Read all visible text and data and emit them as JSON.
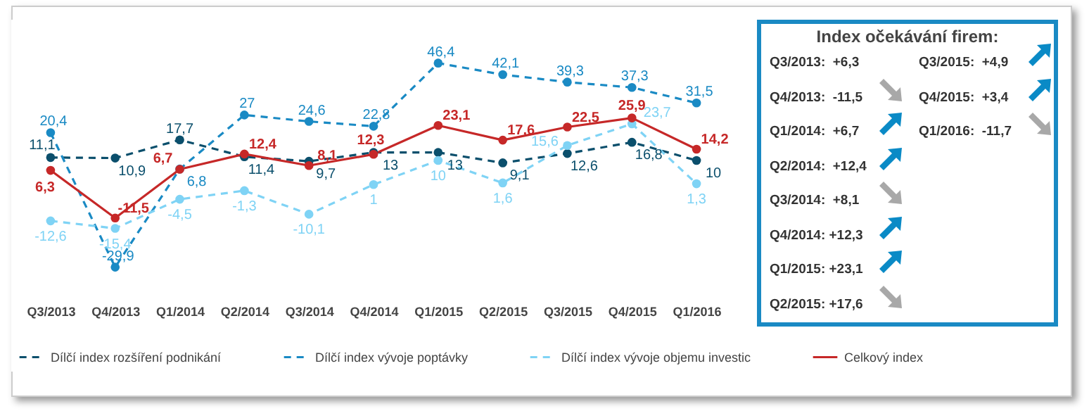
{
  "chart_data": [
    {
      "type": "line",
      "categories": [
        "Q3/2013",
        "Q4/2013",
        "Q1/2014",
        "Q2/2014",
        "Q3/2014",
        "Q4/2014",
        "Q1/2015",
        "Q2/2015",
        "Q3/2015",
        "Q4/2015",
        "Q1/2016"
      ],
      "series": [
        {
          "name": "Dílčí index rozšíření podnikání",
          "color": "#0b4f6c",
          "line_style": "dashed",
          "values": [
            11.1,
            10.9,
            17.7,
            11.4,
            9.7,
            13,
            13,
            9.1,
            12.6,
            16.8,
            10
          ],
          "value_labels": [
            "11,1",
            "10,9",
            "17,7",
            "11,4",
            "9,7",
            "13",
            "13",
            "9,1",
            "12,6",
            "16,8",
            "10"
          ]
        },
        {
          "name": "Dílčí index vývoje poptávky",
          "color": "#1a8ac4",
          "line_style": "dashed",
          "values": [
            20.4,
            -29.9,
            6.8,
            27,
            24.6,
            22.8,
            46.4,
            42.1,
            39.3,
            37.3,
            31.5
          ],
          "value_labels": [
            "20,4",
            "-29,9",
            "6,8",
            "27",
            "24,6",
            "22,8",
            "46,4",
            "42,1",
            "39,3",
            "37,3",
            "31,5"
          ]
        },
        {
          "name": "Dílčí index vývoje objemu investic",
          "color": "#7fd3f5",
          "line_style": "dashed",
          "values": [
            -12.6,
            -15.4,
            -4.5,
            -1.3,
            -10.1,
            1,
            10,
            1.6,
            15.6,
            23.7,
            1.3
          ],
          "value_labels": [
            "-12,6",
            "-15,4",
            "-4,5",
            "-1,3",
            "-10,1",
            "1",
            "10",
            "1,6",
            "15,6",
            "23,7",
            "1,3"
          ]
        },
        {
          "name": "Celkový index",
          "color": "#c62828",
          "line_style": "solid",
          "values": [
            6.3,
            -11.5,
            6.7,
            12.4,
            8.1,
            12.3,
            23.1,
            17.6,
            22.5,
            25.9,
            14.2
          ],
          "value_labels": [
            "6,3",
            "-11,5",
            "6,7",
            "12,4",
            "8,1",
            "12,3",
            "23,1",
            "17,6",
            "22,5",
            "25,9",
            "14,2"
          ]
        }
      ],
      "marker": "circle",
      "legend": "bottom",
      "grid": false
    },
    {
      "type": "other",
      "title": "Index očekávání firem:",
      "annotations": [
        "Q3/2013:  +6,3",
        "Q4/2013:  -11,5",
        "Q1/2014:  +6,7",
        "Q2/2014:  +12,4",
        "Q3/2014:  +8,1",
        "Q4/2014: +12,3",
        "Q1/2015: +23,1",
        "Q2/2015: +17,6",
        "Q3/2015:  +4,9",
        "Q4/2015:  +3,4",
        "Q1/2016:  -11,7"
      ]
    }
  ]
}
